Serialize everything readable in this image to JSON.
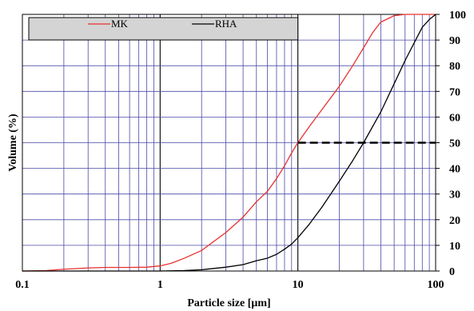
{
  "chart_data": {
    "type": "line",
    "title": "",
    "xlabel": "Particle size [μm]",
    "ylabel": "Volume (%)",
    "x_scale": "log",
    "xlim": [
      0.1,
      100
    ],
    "ylim": [
      0,
      100
    ],
    "x_tick_labels": [
      "0.1",
      "1",
      "10",
      "100"
    ],
    "y_tick_labels": [
      "0",
      "10",
      "20",
      "30",
      "40",
      "50",
      "60",
      "70",
      "80",
      "90",
      "100"
    ],
    "grid": true,
    "legend_placement": "top-left",
    "series": [
      {
        "name": "MK",
        "color": "#e8312f",
        "points": [
          [
            0.1,
            0
          ],
          [
            0.15,
            0.2
          ],
          [
            0.2,
            0.7
          ],
          [
            0.3,
            1.2
          ],
          [
            0.4,
            1.4
          ],
          [
            0.6,
            1.4
          ],
          [
            0.8,
            1.5
          ],
          [
            1,
            2
          ],
          [
            1.2,
            3
          ],
          [
            1.5,
            5
          ],
          [
            2,
            8
          ],
          [
            3,
            15
          ],
          [
            4,
            21
          ],
          [
            5,
            27
          ],
          [
            6,
            31
          ],
          [
            7,
            36
          ],
          [
            8,
            41
          ],
          [
            9,
            46
          ],
          [
            10,
            50
          ],
          [
            12,
            56
          ],
          [
            15,
            63
          ],
          [
            20,
            72
          ],
          [
            25,
            80
          ],
          [
            30,
            87
          ],
          [
            35,
            93
          ],
          [
            40,
            97
          ],
          [
            50,
            99.5
          ],
          [
            60,
            100
          ],
          [
            100,
            100
          ]
        ]
      },
      {
        "name": "RHA",
        "color": "#000000",
        "points": [
          [
            0.1,
            0
          ],
          [
            0.3,
            0
          ],
          [
            1,
            0
          ],
          [
            1.5,
            0.2
          ],
          [
            2,
            0.5
          ],
          [
            3,
            1.5
          ],
          [
            4,
            2.5
          ],
          [
            5,
            4
          ],
          [
            6,
            5
          ],
          [
            7,
            6.5
          ],
          [
            8,
            8.5
          ],
          [
            9,
            10.5
          ],
          [
            10,
            13
          ],
          [
            12,
            18
          ],
          [
            15,
            25
          ],
          [
            20,
            35
          ],
          [
            25,
            43
          ],
          [
            30,
            50
          ],
          [
            40,
            62
          ],
          [
            50,
            73
          ],
          [
            60,
            82
          ],
          [
            70,
            89
          ],
          [
            80,
            95
          ],
          [
            90,
            98
          ],
          [
            100,
            100
          ]
        ]
      }
    ],
    "annotations": [
      {
        "type": "dashed-line",
        "color": "#000000",
        "from": [
          10,
          50
        ],
        "to": [
          100,
          50
        ]
      }
    ]
  }
}
